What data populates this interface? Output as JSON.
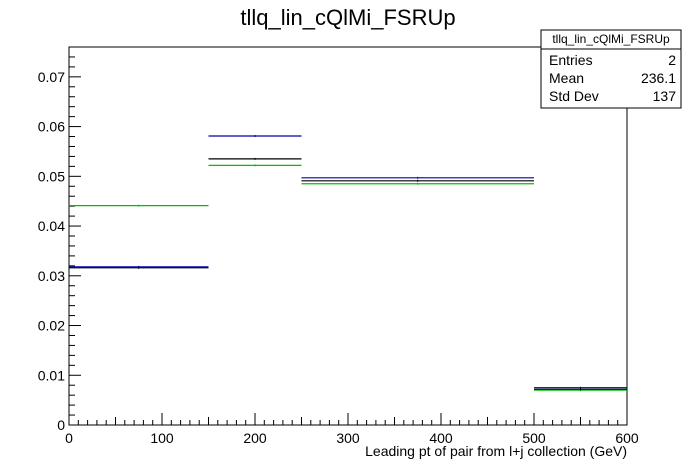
{
  "chart_data": {
    "type": "histogram-step",
    "title": "tllq_lin_cQlMi_FSRUp",
    "xlabel": "Leading pt of pair from l+j collection (GeV)",
    "ylabel": "",
    "xlim": [
      0,
      600
    ],
    "ylim": [
      0,
      0.076
    ],
    "x_ticks": [
      0,
      100,
      200,
      300,
      400,
      500,
      600
    ],
    "x_tick_labels": [
      "0",
      "100",
      "200",
      "300",
      "400",
      "500",
      "600"
    ],
    "y_ticks": [
      0,
      0.01,
      0.02,
      0.03,
      0.04,
      0.05,
      0.06,
      0.07
    ],
    "y_tick_labels": [
      "0",
      "0.01",
      "0.02",
      "0.03",
      "0.04",
      "0.05",
      "0.06",
      "0.07"
    ],
    "bin_edges": [
      0,
      150,
      250,
      500,
      600
    ],
    "series": [
      {
        "color": "#00c000",
        "values": [
          0.0441,
          0.0522,
          0.0485,
          0.007
        ]
      },
      {
        "color": "#0000aa",
        "values": [
          0.0318,
          0.0581,
          0.0497,
          0.0075
        ]
      },
      {
        "color": "#000000",
        "values": [
          0.0316,
          0.0535,
          0.0491,
          0.0072
        ]
      }
    ],
    "grid": false,
    "stats_box": {
      "title": "tllq_lin_cQlMi_FSRUp",
      "rows": [
        {
          "label": "Entries",
          "value": "2"
        },
        {
          "label": "Mean",
          "value": "236.1"
        },
        {
          "label": "Std Dev",
          "value": "137"
        }
      ]
    }
  }
}
